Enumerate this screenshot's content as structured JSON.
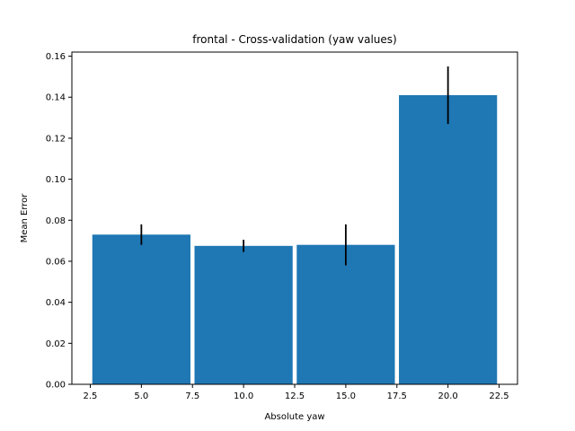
{
  "chart_data": {
    "type": "bar",
    "title": "frontal - Cross-validation (yaw values)",
    "xlabel": "Absolute yaw",
    "ylabel": "Mean Error",
    "xlim": [
      1.6,
      23.4
    ],
    "ylim": [
      0,
      0.162
    ],
    "x_ticks": [
      2.5,
      5.0,
      7.5,
      10.0,
      12.5,
      15.0,
      17.5,
      20.0,
      22.5
    ],
    "x_tick_labels": [
      "2.5",
      "5.0",
      "7.5",
      "10.0",
      "12.5",
      "15.0",
      "17.5",
      "20.0",
      "22.5"
    ],
    "y_ticks": [
      0.0,
      0.02,
      0.04,
      0.06,
      0.08,
      0.1,
      0.12,
      0.14,
      0.16
    ],
    "y_tick_labels": [
      "0.00",
      "0.02",
      "0.04",
      "0.06",
      "0.08",
      "0.10",
      "0.12",
      "0.14",
      "0.16"
    ],
    "bar_width": 4.8,
    "x": [
      5,
      10,
      15,
      20
    ],
    "values": [
      0.073,
      0.0675,
      0.068,
      0.141
    ],
    "errors": [
      0.005,
      0.003,
      0.01,
      0.014
    ],
    "bar_color": "#1f77b4",
    "error_color": "#000000",
    "grid": false,
    "legend": "none"
  }
}
